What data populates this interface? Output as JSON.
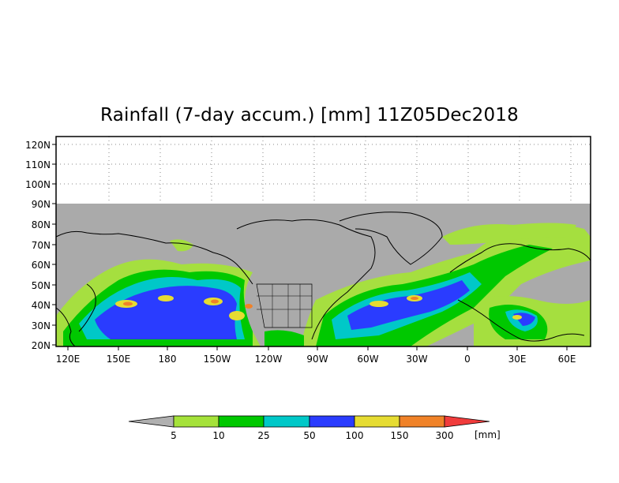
{
  "title": "Rainfall (7-day accum.) [mm] 11Z05Dec2018",
  "lat_labels": [
    "120N",
    "110N",
    "100N",
    "90N",
    "80N",
    "70N",
    "60N",
    "50N",
    "40N",
    "30N",
    "20N"
  ],
  "lon_labels": [
    "120E",
    "150E",
    "180",
    "150W",
    "120W",
    "90W",
    "60W",
    "30W",
    "0",
    "30E",
    "60E"
  ],
  "colorbar": {
    "labels": [
      "5",
      "10",
      "25",
      "50",
      "100",
      "150",
      "300"
    ],
    "unit": "[mm]",
    "colors": [
      "#b0b0b0",
      "#a5e23a",
      "#00c800",
      "#00c8c8",
      "#2a3cff",
      "#e6dc32",
      "#f08228",
      "#f03c3c"
    ]
  },
  "colors": {
    "land_nodata": "#aaaaaa",
    "coast": "#000000"
  }
}
